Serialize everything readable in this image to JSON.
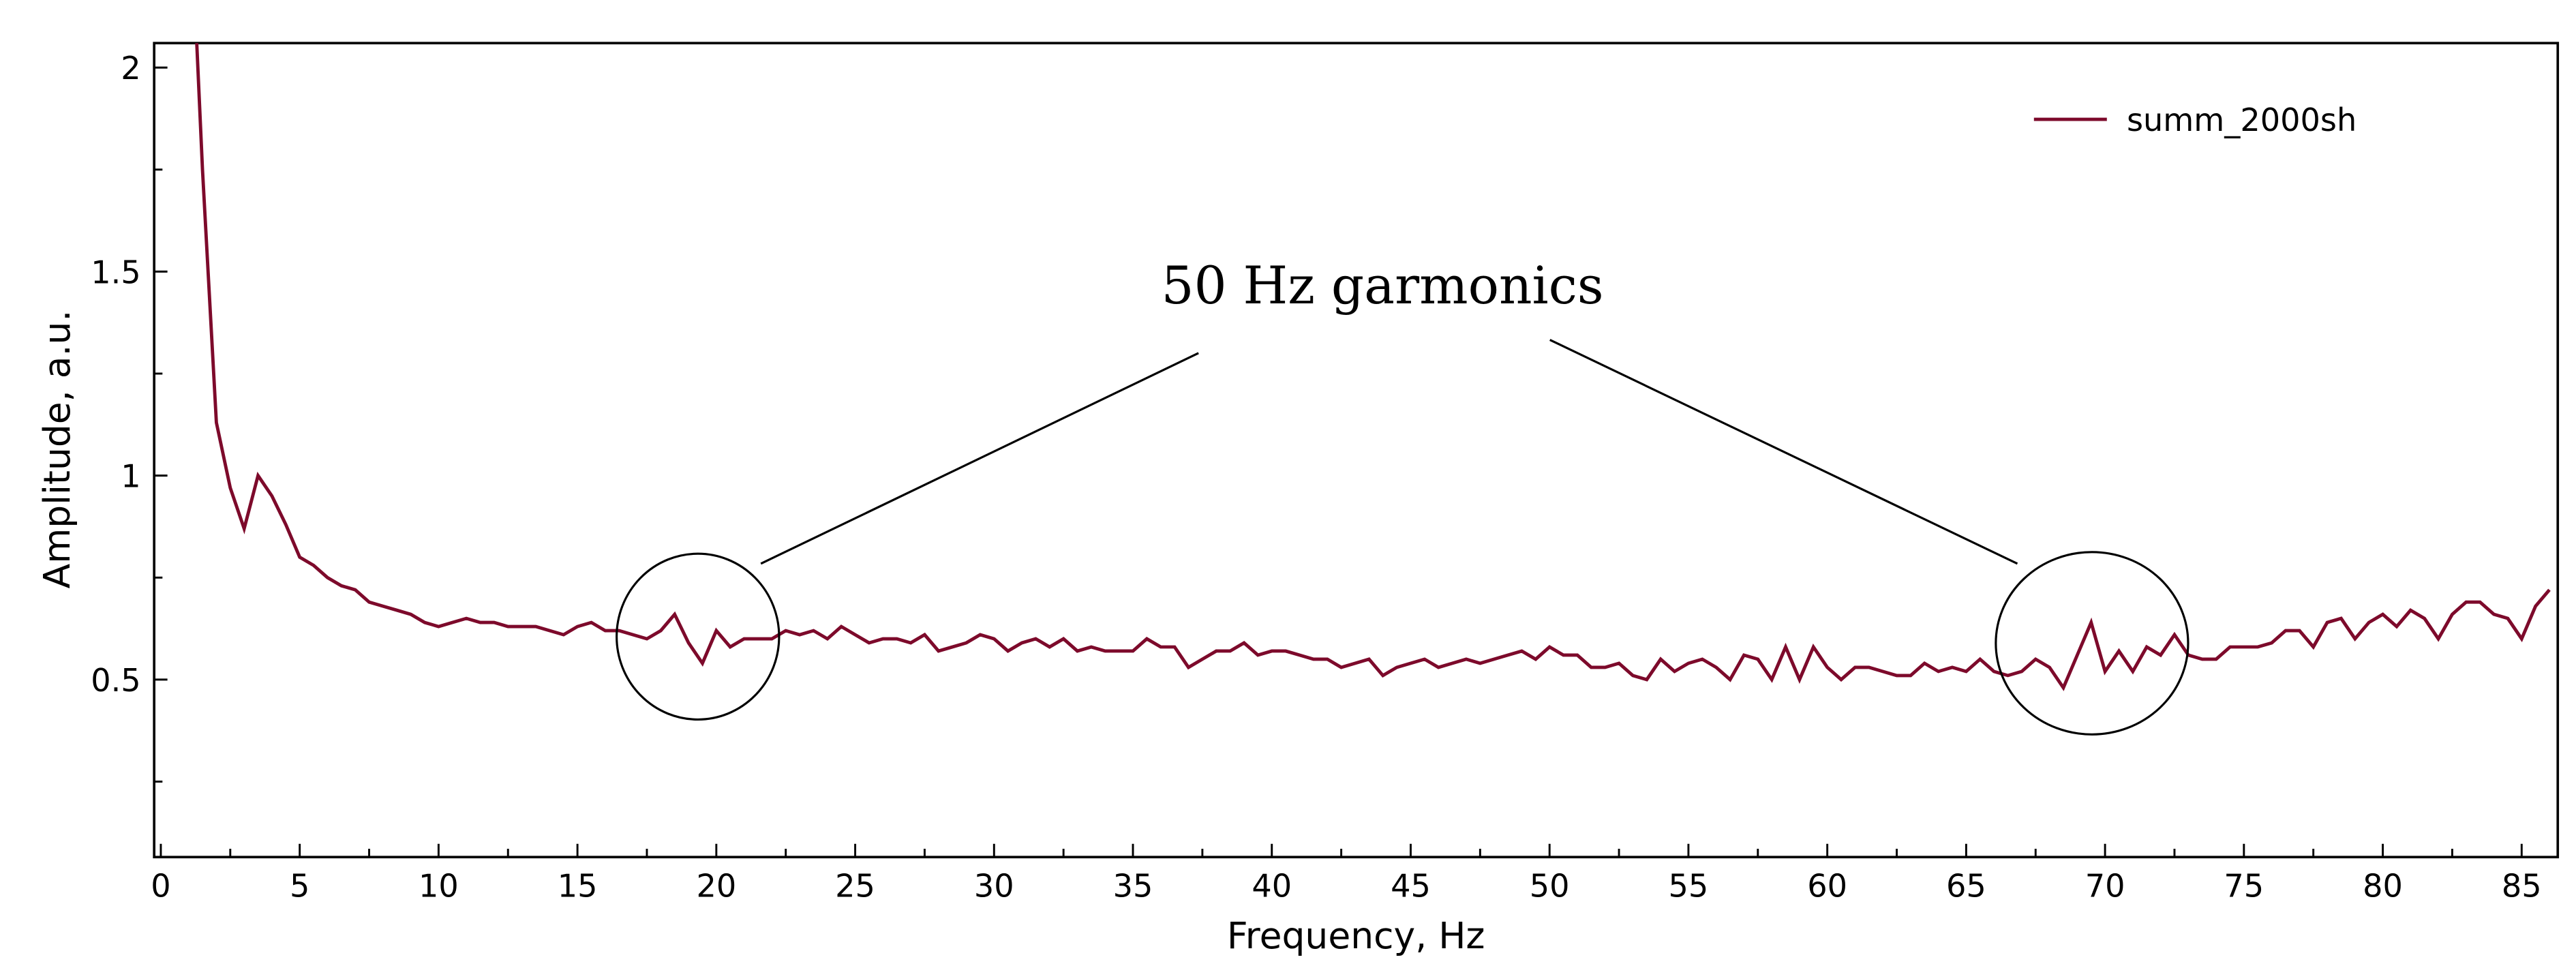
{
  "chart_data": {
    "type": "line",
    "xlabel": "Frequency, Hz",
    "ylabel": "Amplitude, a.u.",
    "annotations": [
      "50 Hz garmonics"
    ],
    "legend": "upper right",
    "x": [
      1,
      1.5,
      2,
      2.5,
      3,
      3.5,
      4,
      4.5,
      5,
      5.5,
      6,
      6.5,
      7,
      7.5,
      8,
      8.5,
      9,
      9.5,
      10,
      10.5,
      11,
      11.5,
      12,
      12.5,
      13,
      13.5,
      14,
      14.5,
      15,
      15.5,
      16,
      16.5,
      17,
      17.5,
      18,
      18.5,
      19,
      19.5,
      20,
      20.5,
      21,
      21.5,
      22,
      22.5,
      23,
      23.5,
      24,
      24.5,
      25,
      25.5,
      26,
      26.5,
      27,
      27.5,
      28,
      28.5,
      29,
      29.5,
      30,
      30.5,
      31,
      31.5,
      32,
      32.5,
      33,
      33.5,
      34,
      34.5,
      35,
      35.5,
      36,
      36.5,
      37,
      37.5,
      38,
      38.5,
      39,
      39.5,
      40,
      40.5,
      41,
      41.5,
      42,
      42.5,
      43,
      43.5,
      44,
      44.5,
      45,
      45.5,
      46,
      46.5,
      47,
      47.5,
      48,
      48.5,
      49,
      49.5,
      50,
      50.5,
      51,
      51.5,
      52,
      52.5,
      53,
      53.5,
      54,
      54.5,
      55,
      55.5,
      56,
      56.5,
      57,
      57.5,
      58,
      58.5,
      59,
      59.5,
      60,
      60.5,
      61,
      61.5,
      62,
      62.5,
      63,
      63.5,
      64,
      64.5,
      65,
      65.5,
      66,
      66.5,
      67,
      67.5,
      68,
      68.5,
      69,
      69.5,
      70,
      70.5,
      71,
      71.5,
      72,
      72.5,
      73,
      73.5,
      74,
      74.5,
      75,
      75.5,
      76,
      76.5,
      77,
      77.5,
      78,
      78.5,
      79,
      79.5,
      80,
      80.5,
      81,
      81.5,
      82,
      82.5,
      83,
      83.5,
      84,
      84.5,
      85,
      85.5,
      86
    ],
    "series": [
      {
        "name": "summ_2000sh",
        "color": "#7d0a2b",
        "values": [
          2.5,
          1.75,
          1.13,
          0.97,
          0.87,
          1.0,
          0.95,
          0.88,
          0.8,
          0.78,
          0.75,
          0.73,
          0.72,
          0.69,
          0.68,
          0.67,
          0.66,
          0.64,
          0.63,
          0.64,
          0.65,
          0.64,
          0.64,
          0.63,
          0.63,
          0.63,
          0.62,
          0.61,
          0.63,
          0.64,
          0.62,
          0.62,
          0.61,
          0.6,
          0.62,
          0.66,
          0.59,
          0.54,
          0.62,
          0.58,
          0.6,
          0.6,
          0.6,
          0.62,
          0.61,
          0.62,
          0.6,
          0.63,
          0.61,
          0.59,
          0.6,
          0.6,
          0.59,
          0.61,
          0.57,
          0.58,
          0.59,
          0.61,
          0.6,
          0.57,
          0.59,
          0.6,
          0.58,
          0.6,
          0.57,
          0.58,
          0.57,
          0.57,
          0.57,
          0.6,
          0.58,
          0.58,
          0.53,
          0.55,
          0.57,
          0.57,
          0.59,
          0.56,
          0.57,
          0.57,
          0.56,
          0.55,
          0.55,
          0.53,
          0.54,
          0.55,
          0.51,
          0.53,
          0.54,
          0.55,
          0.53,
          0.54,
          0.55,
          0.54,
          0.55,
          0.56,
          0.57,
          0.55,
          0.58,
          0.56,
          0.56,
          0.53,
          0.53,
          0.54,
          0.51,
          0.5,
          0.55,
          0.52,
          0.54,
          0.55,
          0.53,
          0.5,
          0.56,
          0.55,
          0.5,
          0.58,
          0.5,
          0.58,
          0.53,
          0.5,
          0.53,
          0.53,
          0.52,
          0.51,
          0.51,
          0.54,
          0.52,
          0.53,
          0.52,
          0.55,
          0.52,
          0.51,
          0.52,
          0.55,
          0.53,
          0.48,
          0.56,
          0.64,
          0.52,
          0.57,
          0.52,
          0.58,
          0.56,
          0.61,
          0.56,
          0.55,
          0.55,
          0.58,
          0.58,
          0.58,
          0.59,
          0.62,
          0.62,
          0.58,
          0.64,
          0.65,
          0.6,
          0.64,
          0.66,
          0.63,
          0.67,
          0.65,
          0.6,
          0.66,
          0.69,
          0.69,
          0.66,
          0.65,
          0.6,
          0.68,
          0.72
        ]
      }
    ],
    "xlim": [
      -0.24,
      86.3
    ],
    "ylim": [
      0.065,
      2.06
    ],
    "xticks": [
      0,
      5,
      10,
      15,
      20,
      25,
      30,
      35,
      40,
      45,
      50,
      55,
      60,
      65,
      70,
      75,
      80,
      85
    ],
    "yticks": [
      0.5,
      1,
      1.5,
      2
    ],
    "xminorticks": [
      2.5,
      7.5,
      12.5,
      17.5,
      22.5,
      27.5,
      32.5,
      37.5,
      42.5,
      47.5,
      52.5,
      57.5,
      62.5,
      67.5,
      72.5,
      77.5,
      82.5
    ],
    "yminorticks": [
      0.25,
      0.75,
      1.25,
      1.75
    ]
  }
}
